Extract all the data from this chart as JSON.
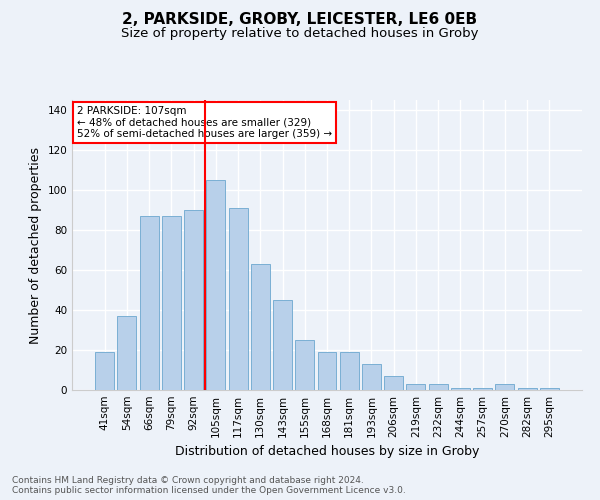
{
  "title1": "2, PARKSIDE, GROBY, LEICESTER, LE6 0EB",
  "title2": "Size of property relative to detached houses in Groby",
  "xlabel": "Distribution of detached houses by size in Groby",
  "ylabel": "Number of detached properties",
  "categories": [
    "41sqm",
    "54sqm",
    "66sqm",
    "79sqm",
    "92sqm",
    "105sqm",
    "117sqm",
    "130sqm",
    "143sqm",
    "155sqm",
    "168sqm",
    "181sqm",
    "193sqm",
    "206sqm",
    "219sqm",
    "232sqm",
    "244sqm",
    "257sqm",
    "270sqm",
    "282sqm",
    "295sqm"
  ],
  "values": [
    19,
    37,
    87,
    87,
    90,
    105,
    91,
    63,
    45,
    25,
    19,
    19,
    13,
    7,
    3,
    3,
    1,
    1,
    3,
    1,
    1
  ],
  "bar_color": "#b8d0ea",
  "bar_edge_color": "#7aafd4",
  "background_color": "#edf2f9",
  "grid_color": "#ffffff",
  "vline_x": 4.5,
  "vline_color": "red",
  "annotation_text": "2 PARKSIDE: 107sqm\n← 48% of detached houses are smaller (329)\n52% of semi-detached houses are larger (359) →",
  "annotation_box_color": "white",
  "annotation_box_edge": "red",
  "ylim": [
    0,
    145
  ],
  "yticks": [
    0,
    20,
    40,
    60,
    80,
    100,
    120,
    140
  ],
  "footer1": "Contains HM Land Registry data © Crown copyright and database right 2024.",
  "footer2": "Contains public sector information licensed under the Open Government Licence v3.0.",
  "title1_fontsize": 11,
  "title2_fontsize": 9.5,
  "tick_fontsize": 7.5,
  "label_fontsize": 9,
  "footer_fontsize": 6.5,
  "annot_fontsize": 7.5
}
